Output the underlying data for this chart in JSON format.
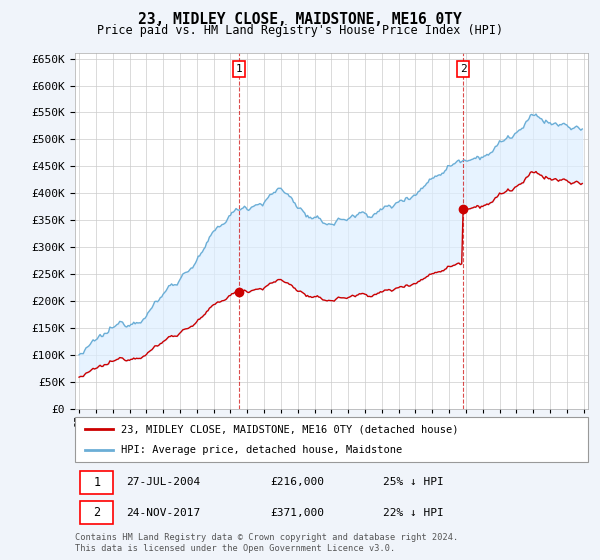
{
  "title": "23, MIDLEY CLOSE, MAIDSTONE, ME16 0TY",
  "subtitle": "Price paid vs. HM Land Registry's House Price Index (HPI)",
  "hpi_label": "HPI: Average price, detached house, Maidstone",
  "price_label": "23, MIDLEY CLOSE, MAIDSTONE, ME16 0TY (detached house)",
  "hpi_color": "#6baed6",
  "hpi_fill": "#ddeeff",
  "price_color": "#cc0000",
  "annotation1_date": "27-JUL-2004",
  "annotation1_price": "£216,000",
  "annotation1_pct": "25% ↓ HPI",
  "annotation2_date": "24-NOV-2017",
  "annotation2_price": "£371,000",
  "annotation2_pct": "22% ↓ HPI",
  "footer": "Contains HM Land Registry data © Crown copyright and database right 2024.\nThis data is licensed under the Open Government Licence v3.0.",
  "ylim": [
    0,
    660000
  ],
  "yticks": [
    0,
    50000,
    100000,
    150000,
    200000,
    250000,
    300000,
    350000,
    400000,
    450000,
    500000,
    550000,
    600000,
    650000
  ],
  "bg_color": "#f0f4fa",
  "plot_bg": "#ffffff",
  "grid_color": "#cccccc",
  "sale1_year": 2004,
  "sale1_month": 7,
  "sale1_price": 216000,
  "sale2_year": 2017,
  "sale2_month": 11,
  "sale2_price": 371000
}
